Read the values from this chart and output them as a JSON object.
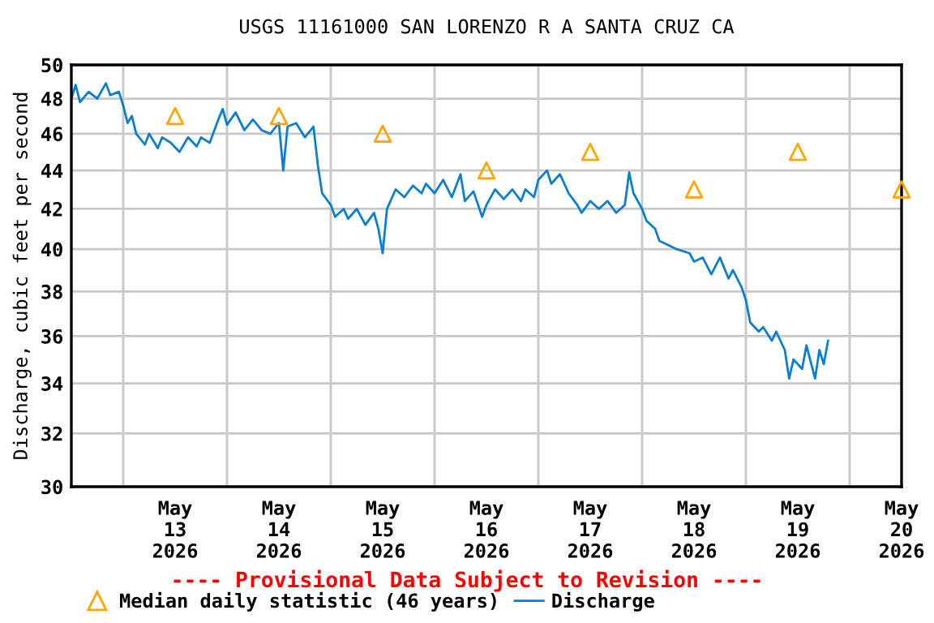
{
  "chart_data": {
    "type": "line",
    "title": "USGS 11161000 SAN LORENZO R A SANTA CRUZ CA",
    "ylabel": "Discharge, cubic feet per second",
    "annotations": [
      "---- Provisional Data Subject to Revision ----"
    ],
    "log": "y",
    "xlim": [
      "2026-05-12T12:00",
      "2026-05-20T12:00"
    ],
    "xticks": [
      {
        "value": "2026-05-13T00:00",
        "label": null
      },
      {
        "value": "2026-05-14T00:00",
        "label": null
      },
      {
        "value": "2026-05-15T00:00",
        "label": null
      },
      {
        "value": "2026-05-16T00:00",
        "label": null
      },
      {
        "value": "2026-05-17T00:00",
        "label": null
      },
      {
        "value": "2026-05-18T00:00",
        "label": null
      },
      {
        "value": "2026-05-19T00:00",
        "label": null
      },
      {
        "value": "2026-05-20T00:00",
        "label": null
      },
      {
        "value": "2026-05-13T12:00",
        "label": "May\n13\n2026"
      },
      {
        "value": "2026-05-14T12:00",
        "label": "May\n14\n2026"
      },
      {
        "value": "2026-05-15T12:00",
        "label": "May\n15\n2026"
      },
      {
        "value": "2026-05-16T12:00",
        "label": "May\n16\n2026"
      },
      {
        "value": "2026-05-17T12:00",
        "label": "May\n17\n2026"
      },
      {
        "value": "2026-05-18T12:00",
        "label": "May\n18\n2026"
      },
      {
        "value": "2026-05-19T12:00",
        "label": "May\n19\n2026"
      },
      {
        "value": "2026-05-20T12:00",
        "label": "May\n20\n2026"
      }
    ],
    "ylim": [
      30,
      50
    ],
    "yticks": [
      30,
      32,
      34,
      36,
      38,
      40,
      42,
      44,
      46,
      48,
      50
    ],
    "grid": true,
    "legend": "bottom",
    "series": [
      {
        "name": "Median daily statistic (46 years)",
        "type": "scatter",
        "marker": "triangle",
        "color": "#ffa500",
        "x": [
          "2026-05-13T12:00",
          "2026-05-14T12:00",
          "2026-05-15T12:00",
          "2026-05-16T12:00",
          "2026-05-17T12:00",
          "2026-05-18T12:00",
          "2026-05-19T12:00",
          "2026-05-20T12:00"
        ],
        "values": [
          47,
          47,
          46,
          44,
          45,
          43,
          45,
          43
        ]
      },
      {
        "name": "Discharge",
        "color": "#0a7fd0",
        "line_style": "solid",
        "x": [
          "2026-05-12T12:00",
          "2026-05-12T13:00",
          "2026-05-12T14:00",
          "2026-05-12T16:00",
          "2026-05-12T18:00",
          "2026-05-12T20:00",
          "2026-05-12T21:00",
          "2026-05-12T23:00",
          "2026-05-13T00:00",
          "2026-05-13T01:00",
          "2026-05-13T02:00",
          "2026-05-13T03:00",
          "2026-05-13T05:00",
          "2026-05-13T06:00",
          "2026-05-13T08:00",
          "2026-05-13T09:00",
          "2026-05-13T11:00",
          "2026-05-13T13:00",
          "2026-05-13T15:00",
          "2026-05-13T17:00",
          "2026-05-13T18:00",
          "2026-05-13T20:00",
          "2026-05-13T22:00",
          "2026-05-13T23:00",
          "2026-05-14T00:00",
          "2026-05-14T02:00",
          "2026-05-14T04:00",
          "2026-05-14T06:00",
          "2026-05-14T08:00",
          "2026-05-14T10:00",
          "2026-05-14T12:00",
          "2026-05-14T13:00",
          "2026-05-14T14:00",
          "2026-05-14T16:00",
          "2026-05-14T18:00",
          "2026-05-14T20:00",
          "2026-05-14T21:00",
          "2026-05-14T22:00",
          "2026-05-15T00:00",
          "2026-05-15T01:00",
          "2026-05-15T03:00",
          "2026-05-15T04:00",
          "2026-05-15T06:00",
          "2026-05-15T08:00",
          "2026-05-15T10:00",
          "2026-05-15T11:00",
          "2026-05-15T12:00",
          "2026-05-15T13:00",
          "2026-05-15T15:00",
          "2026-05-15T17:00",
          "2026-05-15T19:00",
          "2026-05-15T21:00",
          "2026-05-15T22:00",
          "2026-05-16T00:00",
          "2026-05-16T02:00",
          "2026-05-16T04:00",
          "2026-05-16T06:00",
          "2026-05-16T07:00",
          "2026-05-16T09:00",
          "2026-05-16T11:00",
          "2026-05-16T12:00",
          "2026-05-16T14:00",
          "2026-05-16T16:00",
          "2026-05-16T18:00",
          "2026-05-16T20:00",
          "2026-05-16T21:00",
          "2026-05-16T23:00",
          "2026-05-17T00:00",
          "2026-05-17T02:00",
          "2026-05-17T03:00",
          "2026-05-17T05:00",
          "2026-05-17T07:00",
          "2026-05-17T09:00",
          "2026-05-17T10:00",
          "2026-05-17T12:00",
          "2026-05-17T14:00",
          "2026-05-17T16:00",
          "2026-05-17T18:00",
          "2026-05-17T20:00",
          "2026-05-17T21:00",
          "2026-05-17T22:00",
          "2026-05-18T00:00",
          "2026-05-18T01:00",
          "2026-05-18T03:00",
          "2026-05-18T04:00",
          "2026-05-18T06:00",
          "2026-05-18T08:00",
          "2026-05-18T11:00",
          "2026-05-18T12:00",
          "2026-05-18T14:00",
          "2026-05-18T16:00",
          "2026-05-18T18:00",
          "2026-05-18T20:00",
          "2026-05-18T21:00",
          "2026-05-18T23:00",
          "2026-05-19T00:00",
          "2026-05-19T01:00",
          "2026-05-19T03:00",
          "2026-05-19T04:00",
          "2026-05-19T06:00",
          "2026-05-19T07:00",
          "2026-05-19T09:00",
          "2026-05-19T10:00",
          "2026-05-19T11:00",
          "2026-05-19T13:00",
          "2026-05-19T14:00",
          "2026-05-19T16:00",
          "2026-05-19T17:00",
          "2026-05-19T18:00",
          "2026-05-19T19:00"
        ],
        "values": [
          48.0,
          48.8,
          47.8,
          48.4,
          48.0,
          48.9,
          48.2,
          48.4,
          47.6,
          46.6,
          47.0,
          46.0,
          45.4,
          46.0,
          45.2,
          45.8,
          45.5,
          45.0,
          45.8,
          45.3,
          45.8,
          45.5,
          46.8,
          47.4,
          46.5,
          47.2,
          46.2,
          46.8,
          46.2,
          46.0,
          46.6,
          44.0,
          46.4,
          46.6,
          45.8,
          46.4,
          44.3,
          42.8,
          42.2,
          41.6,
          42.0,
          41.5,
          42.0,
          41.2,
          41.8,
          41.0,
          39.8,
          42.0,
          43.0,
          42.6,
          43.2,
          42.8,
          43.3,
          42.8,
          43.5,
          42.6,
          43.8,
          42.4,
          42.9,
          41.6,
          42.2,
          43.0,
          42.5,
          43.0,
          42.4,
          43.0,
          42.6,
          43.5,
          44.0,
          43.3,
          43.8,
          42.8,
          42.2,
          41.8,
          42.4,
          42.0,
          42.4,
          41.8,
          42.2,
          43.9,
          42.8,
          42.0,
          41.4,
          41.0,
          40.4,
          40.2,
          40.0,
          39.8,
          39.4,
          39.6,
          38.8,
          39.6,
          38.6,
          39.0,
          38.2,
          37.6,
          36.6,
          36.2,
          36.4,
          35.8,
          36.2,
          35.4,
          34.2,
          35.0,
          34.6,
          35.6,
          34.2,
          35.4,
          34.8,
          35.8
        ]
      }
    ]
  }
}
